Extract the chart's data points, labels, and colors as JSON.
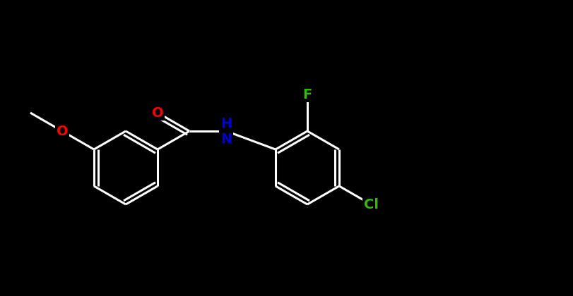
{
  "background_color": "#000000",
  "bond_color": "#ffffff",
  "bond_width": 2.2,
  "atom_colors": {
    "O": "#ff0000",
    "N": "#0000cd",
    "F": "#33bb00",
    "Cl": "#33bb00",
    "C": "#ffffff",
    "H": "#ffffff"
  },
  "font_size": 13,
  "figsize": [
    8.12,
    4.2
  ],
  "dpi": 100
}
